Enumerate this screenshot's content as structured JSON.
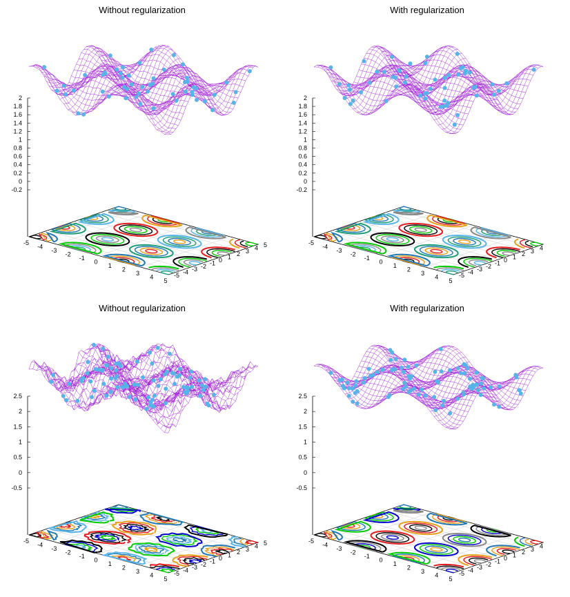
{
  "chart_data": [
    {
      "type": "surface3d",
      "title": "Without regularization",
      "regularized": false,
      "noise": 0.05,
      "z_ticks": [
        "2",
        "1.8",
        "1.6",
        "1.4",
        "1.2",
        "1",
        "0.8",
        "0.6",
        "0.4",
        "0.2",
        "0",
        "-0.2"
      ],
      "x_ticks": [
        "-5",
        "-4",
        "-3",
        "-2",
        "-1",
        "0",
        "1",
        "2",
        "3",
        "4",
        "5"
      ],
      "y_ticks": [
        "-5",
        "-4",
        "-3",
        "-2",
        "-1",
        "0",
        "1",
        "2",
        "3",
        "4",
        "5"
      ],
      "xlim": [
        -5,
        5
      ],
      "ylim": [
        -5,
        5
      ],
      "zlim": [
        -0.3,
        2.0
      ],
      "surface": "z = 1 + 0.5*sin(x)*sin(y) + 0.15*x/5",
      "surface_color": "#9400d3",
      "point_color": "#56b4e9",
      "contour_colors": [
        "#000000",
        "#e41a1c",
        "#e6a019",
        "#1f78b4",
        "#1b9e77",
        "#56b4e9",
        "#888888",
        "#00cc00"
      ]
    },
    {
      "type": "surface3d",
      "title": "With regularization",
      "regularized": true,
      "noise": 0.0,
      "z_ticks": [
        "2",
        "1.8",
        "1.6",
        "1.4",
        "1.2",
        "1",
        "0.8",
        "0.6",
        "0.4",
        "0.2",
        "0",
        "-0.2"
      ],
      "x_ticks": [
        "-5",
        "-4",
        "-3",
        "-2",
        "-1",
        "0",
        "1",
        "2",
        "3",
        "4",
        "5"
      ],
      "y_ticks": [
        "-5",
        "-4",
        "-3",
        "-2",
        "-1",
        "0",
        "1",
        "2",
        "3",
        "4"
      ],
      "xlim": [
        -5,
        5
      ],
      "ylim": [
        -5,
        5
      ],
      "zlim": [
        -0.3,
        2.0
      ],
      "surface": "z = 1 + 0.5*sin(x)*sin(y) + 0.15*x/5",
      "surface_color": "#9400d3",
      "point_color": "#56b4e9",
      "contour_colors": [
        "#000000",
        "#e41a1c",
        "#e6a019",
        "#1f78b4",
        "#1b9e77",
        "#56b4e9",
        "#888888",
        "#00cc00"
      ]
    },
    {
      "type": "surface3d",
      "title": "Without regularization",
      "regularized": false,
      "noise": 0.35,
      "z_ticks": [
        "2.5",
        "2",
        "1.5",
        "1",
        "0.5",
        "0",
        "-0.5"
      ],
      "x_ticks": [
        "-5",
        "-4",
        "-3",
        "-2",
        "-1",
        "0",
        "1",
        "2",
        "3",
        "4",
        "5"
      ],
      "y_ticks": [
        "-5",
        "-4",
        "-3",
        "-2",
        "-1",
        "0",
        "1",
        "2",
        "3",
        "4",
        "5"
      ],
      "xlim": [
        -5,
        5
      ],
      "ylim": [
        -5,
        5
      ],
      "zlim": [
        -0.7,
        2.6
      ],
      "surface": "z = 1.2 + 0.6*sin(x)*sin(y) + noise",
      "surface_color": "#9400d3",
      "point_color": "#56b4e9",
      "contour_colors": [
        "#000000",
        "#e41a1c",
        "#e6a019",
        "#1f78b4",
        "#56b4e9",
        "#00cc00",
        "#0000cc"
      ]
    },
    {
      "type": "surface3d",
      "title": "With regularization",
      "regularized": true,
      "noise": 0.0,
      "z_ticks": [
        "2.5",
        "2",
        "1.5",
        "1",
        "0.5",
        "0",
        "-0.5"
      ],
      "x_ticks": [
        "-5",
        "-4",
        "-3",
        "-2",
        "-1",
        "0",
        "1",
        "2",
        "3",
        "4",
        "5"
      ],
      "y_ticks": [
        "-5",
        "-4",
        "-3",
        "-2",
        "-1",
        "0",
        "1",
        "2",
        "3",
        "4"
      ],
      "xlim": [
        -5,
        5
      ],
      "ylim": [
        -5,
        5
      ],
      "zlim": [
        -0.7,
        2.6
      ],
      "surface": "z = 1.2 + 0.6*sin(x)*sin(y)",
      "surface_color": "#9400d3",
      "point_color": "#56b4e9",
      "contour_colors": [
        "#000000",
        "#e41a1c",
        "#e6a019",
        "#1f78b4",
        "#00cc00",
        "#0000cc",
        "#888888"
      ]
    }
  ]
}
